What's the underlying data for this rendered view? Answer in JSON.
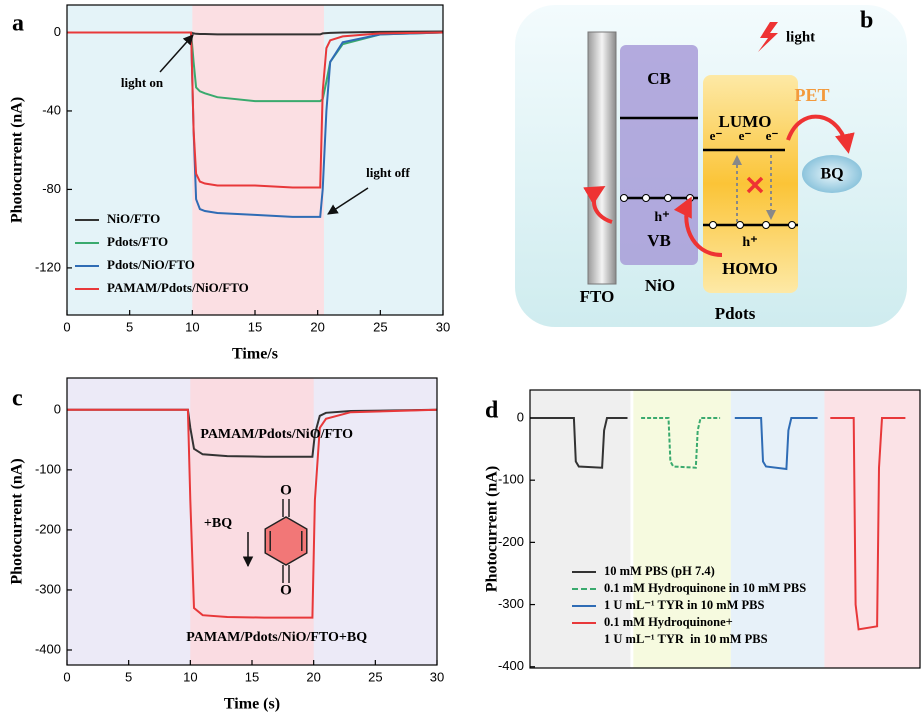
{
  "chart_data": [
    {
      "type": "line",
      "panel_label": "a",
      "xlabel": "Time/s",
      "ylabel": "Photocurrent (nA)",
      "xlim": [
        0,
        30
      ],
      "ylim": [
        -144,
        14
      ],
      "xticks": [
        0,
        5,
        10,
        15,
        20,
        25,
        30
      ],
      "yticks": [
        0,
        -40,
        -80,
        -120
      ],
      "background": "#e4f3f8",
      "shades": [
        {
          "from": 10,
          "to": 20.5,
          "color": "#fbdfe3"
        }
      ],
      "legend": "lower left",
      "annotations": [
        "light on",
        "light off"
      ],
      "x": [
        0,
        9.9,
        10.1,
        10.3,
        10.6,
        11,
        12,
        15,
        18,
        20.2,
        20.4,
        20.7,
        21,
        22,
        25,
        30
      ],
      "series": [
        {
          "name": "NiO/FTO",
          "color": "#333333",
          "values": [
            0,
            0,
            -0.5,
            -0.7,
            -0.8,
            -0.8,
            -1,
            -1,
            -1,
            -1,
            -0.5,
            -0.3,
            -0.2,
            0,
            0.3,
            0.5
          ]
        },
        {
          "name": "Pdots/FTO",
          "color": "#3aaa6e",
          "values": [
            0,
            0,
            -15,
            -28,
            -30,
            -31,
            -33,
            -35,
            -35,
            -35,
            -34,
            -25,
            -15,
            -6,
            -1,
            0
          ]
        },
        {
          "name": "Pdots/NiO/FTO",
          "color": "#2f6cb5",
          "values": [
            0,
            0,
            -50,
            -85,
            -90,
            -91,
            -92,
            -93,
            -94,
            -94,
            -80,
            -40,
            -15,
            -5,
            -1,
            0
          ]
        },
        {
          "name": "PAMAM/Pdots/NiO/FTO",
          "color": "#e8383a",
          "values": [
            0,
            0,
            -50,
            -72,
            -76,
            -77,
            -78,
            -78,
            -79,
            -79,
            -30,
            -8,
            -4,
            -2,
            -0.5,
            0
          ]
        }
      ]
    },
    {
      "type": "line",
      "panel_label": "c",
      "xlabel": "Time (s)",
      "ylabel": "Photocurrent (nA)",
      "xlim": [
        0,
        30
      ],
      "ylim": [
        -425,
        53
      ],
      "xticks": [
        0,
        5,
        10,
        15,
        20,
        25,
        30
      ],
      "yticks": [
        0,
        -100,
        -200,
        -300,
        -400
      ],
      "background": "#eceaf7",
      "shades": [
        {
          "from": 10,
          "to": 20,
          "color": "#fadce2"
        }
      ],
      "legend": "inline",
      "annotations": [
        "+BQ"
      ],
      "molecule_labels": [
        "O",
        "O"
      ],
      "x": [
        0,
        9.8,
        10,
        10.3,
        11,
        13,
        16,
        19.9,
        20.1,
        20.5,
        21,
        23,
        30
      ],
      "series": [
        {
          "name": "PAMAM/Pdots/NiO/FTO",
          "color": "#333333",
          "values": [
            0,
            0,
            -30,
            -65,
            -74,
            -77,
            -78,
            -78,
            -40,
            -10,
            -5,
            -2,
            0
          ]
        },
        {
          "name": "PAMAM/Pdots/NiO/FTO+BQ",
          "color": "#e8383a",
          "values": [
            0,
            0,
            -150,
            -330,
            -342,
            -345,
            -346,
            -346,
            -150,
            -30,
            -15,
            -4,
            0
          ]
        }
      ]
    },
    {
      "type": "line",
      "panel_label": "d",
      "ylabel": "Photocurrent (nA)",
      "xlim": [
        0,
        40
      ],
      "ylim": [
        -402,
        45
      ],
      "yticks": [
        0,
        -100,
        -200,
        -300,
        -400
      ],
      "background": "#ffffff",
      "shades": [
        {
          "from": 0,
          "to": 10.3,
          "color": "#efefef"
        },
        {
          "from": 10.6,
          "to": 20.6,
          "color": "#f6fadf"
        },
        {
          "from": 20.6,
          "to": 30.2,
          "color": "#e7f1f9"
        },
        {
          "from": 30.2,
          "to": 40,
          "color": "#fbe2e6"
        }
      ],
      "legend": "lower left",
      "series": [
        {
          "name": "10 mM PBS (pH 7.4)",
          "color": "#333333",
          "x": [
            0,
            4.5,
            4.7,
            5,
            7.4,
            7.6,
            7.9,
            10
          ],
          "values": [
            0,
            0,
            -70,
            -78,
            -80,
            -20,
            0,
            0
          ]
        },
        {
          "name": "0.1 mM Hydroquinone in 10 mM PBS",
          "color": "#3aaa6e",
          "dash": true,
          "x": [
            11.4,
            14.2,
            14.4,
            14.7,
            17,
            17.2,
            17.5,
            19.5
          ],
          "values": [
            0,
            0,
            -70,
            -78,
            -80,
            -20,
            0,
            0
          ]
        },
        {
          "name": "1 U mL⁻¹ TYR in 10 mM PBS",
          "color": "#2f6cb5",
          "x": [
            21,
            23.7,
            23.9,
            24.2,
            26.3,
            26.5,
            26.8,
            29.5
          ],
          "values": [
            0,
            0,
            -70,
            -78,
            -82,
            -20,
            0,
            0
          ]
        },
        {
          "name": "0.1 mM Hydroquinone+\n1 U mL⁻¹ TYR  in 10 mM PBS",
          "color": "#e8383a",
          "x": [
            30.8,
            33.2,
            33.4,
            33.7,
            35.6,
            35.8,
            36.1,
            38.5
          ],
          "values": [
            0,
            0,
            -300,
            -340,
            -335,
            -80,
            0,
            0
          ]
        }
      ]
    }
  ],
  "diagram": {
    "panel_label": "b",
    "light": "light",
    "cb": "CB",
    "vb": "VB",
    "nio": "NiO",
    "fto": "FTO",
    "lumo": "LUMO",
    "homo": "HOMO",
    "pdots": "Pdots",
    "pet": "PET",
    "bq": "BQ",
    "electron": "e⁻",
    "hole": "h⁺"
  }
}
